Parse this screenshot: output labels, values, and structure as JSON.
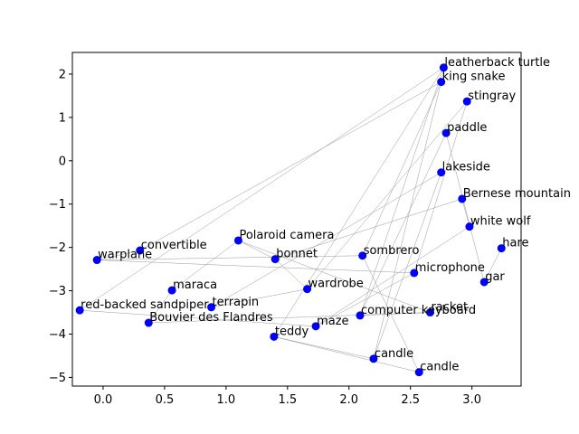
{
  "chart_data": {
    "type": "scatter",
    "title": "",
    "xlabel": "",
    "ylabel": "",
    "xlim": [
      -0.25,
      3.4
    ],
    "ylim": [
      -5.2,
      2.5
    ],
    "xticks": [
      0.0,
      0.5,
      1.0,
      1.5,
      2.0,
      2.5,
      3.0
    ],
    "xtick_labels": [
      "0.0",
      "0.5",
      "1.0",
      "1.5",
      "2.0",
      "2.5",
      "3.0"
    ],
    "yticks": [
      -5,
      -4,
      -3,
      -2,
      -1,
      0,
      1,
      2
    ],
    "ytick_labels": [
      "−5",
      "−4",
      "−3",
      "−2",
      "−1",
      "0",
      "1",
      "2"
    ],
    "grid": false,
    "point_color": "#0000ff",
    "edge_color": "#999999",
    "points": [
      {
        "label": "leatherback turtle",
        "x": 2.77,
        "y": 2.15
      },
      {
        "label": "king snake",
        "x": 2.75,
        "y": 1.82
      },
      {
        "label": "stingray",
        "x": 2.96,
        "y": 1.37
      },
      {
        "label": "paddle",
        "x": 2.79,
        "y": 0.64
      },
      {
        "label": "lakeside",
        "x": 2.75,
        "y": -0.27
      },
      {
        "label": "Bernese mountain",
        "x": 2.92,
        "y": -0.88
      },
      {
        "label": "white wolf",
        "x": 2.98,
        "y": -1.52
      },
      {
        "label": "hare",
        "x": 3.24,
        "y": -2.02
      },
      {
        "label": "gar",
        "x": 3.1,
        "y": -2.8
      },
      {
        "label": "microphone",
        "x": 2.53,
        "y": -2.59
      },
      {
        "label": "sombrero",
        "x": 2.11,
        "y": -2.19
      },
      {
        "label": "Polaroid camera",
        "x": 1.1,
        "y": -1.84
      },
      {
        "label": "bonnet",
        "x": 1.4,
        "y": -2.27
      },
      {
        "label": "convertible",
        "x": 0.3,
        "y": -2.07
      },
      {
        "label": "warplane",
        "x": -0.05,
        "y": -2.29
      },
      {
        "label": "maraca",
        "x": 0.56,
        "y": -2.99
      },
      {
        "label": "wardrobe",
        "x": 1.66,
        "y": -2.96
      },
      {
        "label": "terrapin",
        "x": 0.88,
        "y": -3.38
      },
      {
        "label": "red-backed sandpiper",
        "x": -0.19,
        "y": -3.45
      },
      {
        "label": "Bouvier des Flandres",
        "x": 0.37,
        "y": -3.74
      },
      {
        "label": "teddy",
        "x": 1.39,
        "y": -4.06
      },
      {
        "label": "maze",
        "x": 1.73,
        "y": -3.82
      },
      {
        "label": "computer keyboard",
        "x": 2.09,
        "y": -3.57
      },
      {
        "label": "racket",
        "x": 2.66,
        "y": -3.5
      },
      {
        "label": "candle",
        "x": 2.2,
        "y": -4.57
      },
      {
        "label": "candle",
        "x": 2.57,
        "y": -4.88
      }
    ],
    "edges": [
      [
        18,
        0
      ],
      [
        0,
        20
      ],
      [
        0,
        22
      ],
      [
        1,
        13
      ],
      [
        1,
        24
      ],
      [
        1,
        10
      ],
      [
        2,
        9
      ],
      [
        2,
        16
      ],
      [
        3,
        22
      ],
      [
        4,
        24
      ],
      [
        4,
        17
      ],
      [
        5,
        6
      ],
      [
        5,
        12
      ],
      [
        6,
        21
      ],
      [
        7,
        8
      ],
      [
        8,
        3
      ],
      [
        9,
        14
      ],
      [
        10,
        25
      ],
      [
        11,
        12
      ],
      [
        11,
        15
      ],
      [
        13,
        14
      ],
      [
        15,
        19
      ],
      [
        16,
        17
      ],
      [
        18,
        21
      ],
      [
        19,
        23
      ],
      [
        20,
        24
      ],
      [
        20,
        25
      ],
      [
        21,
        9
      ],
      [
        22,
        23
      ],
      [
        23,
        11
      ],
      [
        12,
        16
      ],
      [
        14,
        10
      ]
    ]
  }
}
